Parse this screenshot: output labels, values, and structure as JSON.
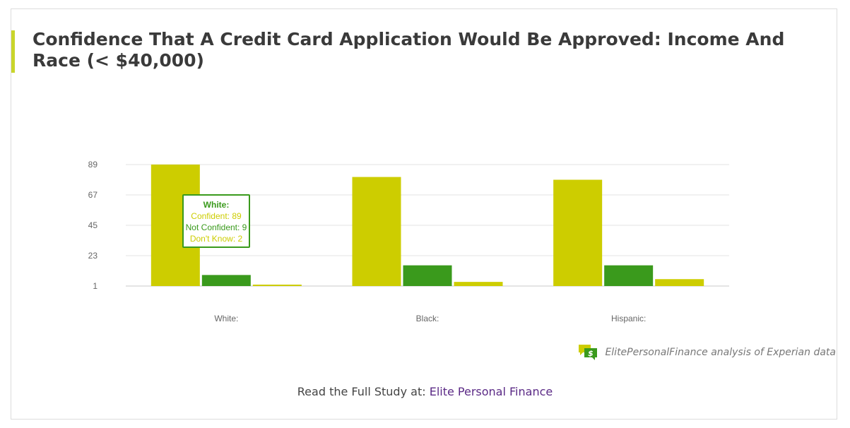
{
  "title": "Confidence That A Credit Card Application Would Be Approved: Income And Race (< $40,000)",
  "colors": {
    "accent": "#c9d52b",
    "confident": "#cdcd00",
    "not_confident": "#3a9a1c",
    "dont_know": "#cdcd00",
    "grid": "#e3e3e3",
    "link": "#5b2a86"
  },
  "chart_data": {
    "type": "bar",
    "categories": [
      "White:",
      "Black:",
      "Hispanic:"
    ],
    "series": [
      {
        "name": "Confident",
        "values": [
          89,
          80,
          78
        ]
      },
      {
        "name": "Not Confident",
        "values": [
          9,
          16,
          16
        ]
      },
      {
        "name": "Don't Know",
        "values": [
          2,
          4,
          6
        ]
      }
    ],
    "yticks": [
      1,
      23,
      45,
      67,
      89
    ],
    "ylim": [
      1,
      89
    ],
    "grid": true,
    "legend": "none"
  },
  "tooltip": {
    "title": "White:",
    "confident": "Confident: 89",
    "not_confident": "Not Confident: 9",
    "dont_know": "Don't Know: 2"
  },
  "source": {
    "icon": "dollar-chat-icon",
    "text": "ElitePersonalFinance analysis of Experian data"
  },
  "footer": {
    "prefix": "Read the Full Study at:",
    "link_text": "Elite Personal Finance"
  }
}
